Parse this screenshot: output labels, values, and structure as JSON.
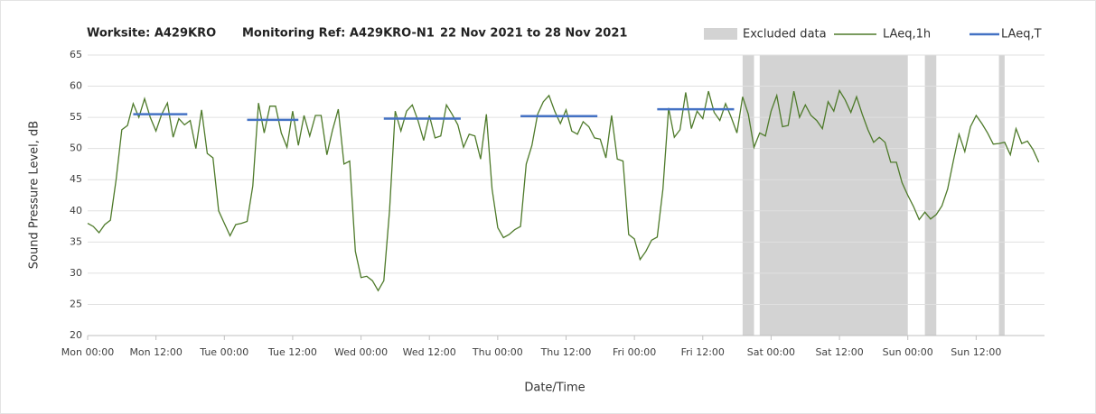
{
  "chart_data": {
    "type": "line",
    "title": [
      "Worksite: A429KRO",
      "Monitoring Ref: A429KRO-N1",
      "22 Nov 2021 to 28 Nov 2021"
    ],
    "xlabel": "Date/Time",
    "ylabel": "Sound Pressure Level, dB",
    "xlim": [
      0,
      168
    ],
    "xticks": [
      {
        "value": 0,
        "label": "Mon 00:00"
      },
      {
        "value": 12,
        "label": "Mon 12:00"
      },
      {
        "value": 24,
        "label": "Tue 00:00"
      },
      {
        "value": 36,
        "label": "Tue 12:00"
      },
      {
        "value": 48,
        "label": "Wed 00:00"
      },
      {
        "value": 60,
        "label": "Wed 12:00"
      },
      {
        "value": 72,
        "label": "Thu 00:00"
      },
      {
        "value": 84,
        "label": "Thu 12:00"
      },
      {
        "value": 96,
        "label": "Fri 00:00"
      },
      {
        "value": 108,
        "label": "Fri 12:00"
      },
      {
        "value": 120,
        "label": "Sat 00:00"
      },
      {
        "value": 132,
        "label": "Sat 12:00"
      },
      {
        "value": 144,
        "label": "Sun 00:00"
      },
      {
        "value": 156,
        "label": "Sun 12:00"
      }
    ],
    "ylim": [
      20,
      65
    ],
    "yticks": [
      20,
      25,
      30,
      35,
      40,
      45,
      50,
      55,
      60,
      65
    ],
    "grid": true,
    "excluded": {
      "name": "Excluded data",
      "color": "#d3d3d3",
      "ranges": [
        [
          115,
          117
        ],
        [
          118,
          144
        ],
        [
          147,
          149
        ],
        [
          160,
          161
        ]
      ]
    },
    "series": [
      {
        "name": "LAeq,1h",
        "color": "#4e7a2a",
        "x": [
          0,
          1,
          2,
          3,
          4,
          5,
          6,
          7,
          8,
          9,
          10,
          11,
          12,
          13,
          14,
          15,
          16,
          17,
          18,
          19,
          20,
          21,
          22,
          23,
          24,
          25,
          26,
          27,
          28,
          29,
          30,
          31,
          32,
          33,
          34,
          35,
          36,
          37,
          38,
          39,
          40,
          41,
          42,
          43,
          44,
          45,
          46,
          47,
          48,
          49,
          50,
          51,
          52,
          53,
          54,
          55,
          56,
          57,
          58,
          59,
          60,
          61,
          62,
          63,
          64,
          65,
          66,
          67,
          68,
          69,
          70,
          71,
          72,
          73,
          74,
          75,
          76,
          77,
          78,
          79,
          80,
          81,
          82,
          83,
          84,
          85,
          86,
          87,
          88,
          89,
          90,
          91,
          92,
          93,
          94,
          95,
          96,
          97,
          98,
          99,
          100,
          101,
          102,
          103,
          104,
          105,
          106,
          107,
          108,
          109,
          110,
          111,
          112,
          113,
          114,
          115,
          116,
          117,
          118,
          119,
          120,
          121,
          122,
          123,
          124,
          125,
          126,
          127,
          128,
          129,
          130,
          131,
          132,
          133,
          134,
          135,
          136,
          137,
          138,
          139,
          140,
          141,
          142,
          143,
          144,
          145,
          146,
          147,
          148,
          149,
          150,
          151,
          152,
          153,
          154,
          155,
          156,
          157,
          158,
          159,
          160,
          161,
          162,
          163,
          164,
          165,
          166,
          167
        ],
        "values": [
          38,
          37.5,
          36.5,
          37.8,
          38.5,
          45,
          53,
          53.7,
          57.2,
          55,
          58,
          55,
          52.8,
          55.5,
          57.3,
          51.8,
          54.8,
          53.8,
          54.5,
          50,
          56.2,
          49.2,
          48.5,
          40,
          38,
          36,
          37.8,
          38,
          38.3,
          44,
          57.3,
          52.5,
          56.8,
          56.8,
          52.5,
          50.2,
          56,
          50.5,
          55.3,
          52,
          55.3,
          55.3,
          49,
          53,
          56.3,
          47.5,
          48,
          33.5,
          29.3,
          29.5,
          28.8,
          27.2,
          28.8,
          40,
          56,
          52.8,
          56,
          57,
          54.5,
          51.3,
          55.3,
          51.7,
          52,
          57,
          55.5,
          53.8,
          50.2,
          52.3,
          52,
          48.3,
          55.5,
          43.5,
          37.3,
          35.7,
          36.2,
          37,
          37.5,
          47.5,
          50.5,
          55.5,
          57.5,
          58.5,
          56,
          54,
          56.2,
          52.8,
          52.3,
          54.3,
          53.5,
          51.7,
          51.5,
          48.5,
          55.3,
          48.3,
          48,
          36.2,
          35.5,
          32.2,
          33.5,
          35.3,
          35.8,
          43.5,
          56.5,
          51.8,
          53,
          59,
          53.2,
          56,
          54.8,
          59.2,
          55.8,
          54.5,
          57.2,
          55,
          52.5,
          58.3,
          55.5,
          50.2,
          52.5,
          52,
          56,
          58.5,
          53.5,
          53.7,
          59.2,
          55,
          57,
          55.3,
          54.5,
          53.2,
          57.5,
          56,
          59.3,
          57.8,
          55.8,
          58.3,
          55.5,
          53,
          51,
          51.8,
          51,
          47.8,
          47.8,
          44.5,
          42.5,
          40.7,
          38.6,
          39.8,
          38.7,
          39.4,
          40.8,
          43.5,
          48,
          52.3,
          49.5,
          53.5,
          55.3,
          54,
          52.5,
          50.7,
          50.8,
          51,
          49,
          53.2,
          50.8,
          51.2,
          49.8,
          47.8
        ]
      },
      {
        "name": "LAeq,T",
        "color": "#4472c4",
        "segments": [
          {
            "x": [
              8,
              17.5
            ],
            "value": 55.5
          },
          {
            "x": [
              28,
              37
            ],
            "value": 54.6
          },
          {
            "x": [
              52,
              65.5
            ],
            "value": 54.8
          },
          {
            "x": [
              76,
              89.5
            ],
            "value": 55.2
          },
          {
            "x": [
              100,
              113.5
            ],
            "value": 56.3
          }
        ]
      }
    ]
  }
}
